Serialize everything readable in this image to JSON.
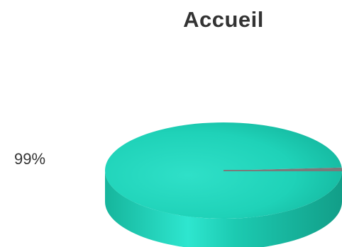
{
  "chart_data": {
    "type": "pie",
    "title": "Accueil",
    "slices": [
      {
        "value": 99,
        "label": "99%",
        "color": "#1fd2b8"
      },
      {
        "value": 1,
        "label": "",
        "color": "#7a7a7a"
      }
    ]
  },
  "colors": {
    "primary_top": "#1fd2b8",
    "primary_side": "#19bfa6",
    "highlight": "#5ff0dd",
    "minor_slice": "#7a7a7a",
    "text": "#333333"
  }
}
